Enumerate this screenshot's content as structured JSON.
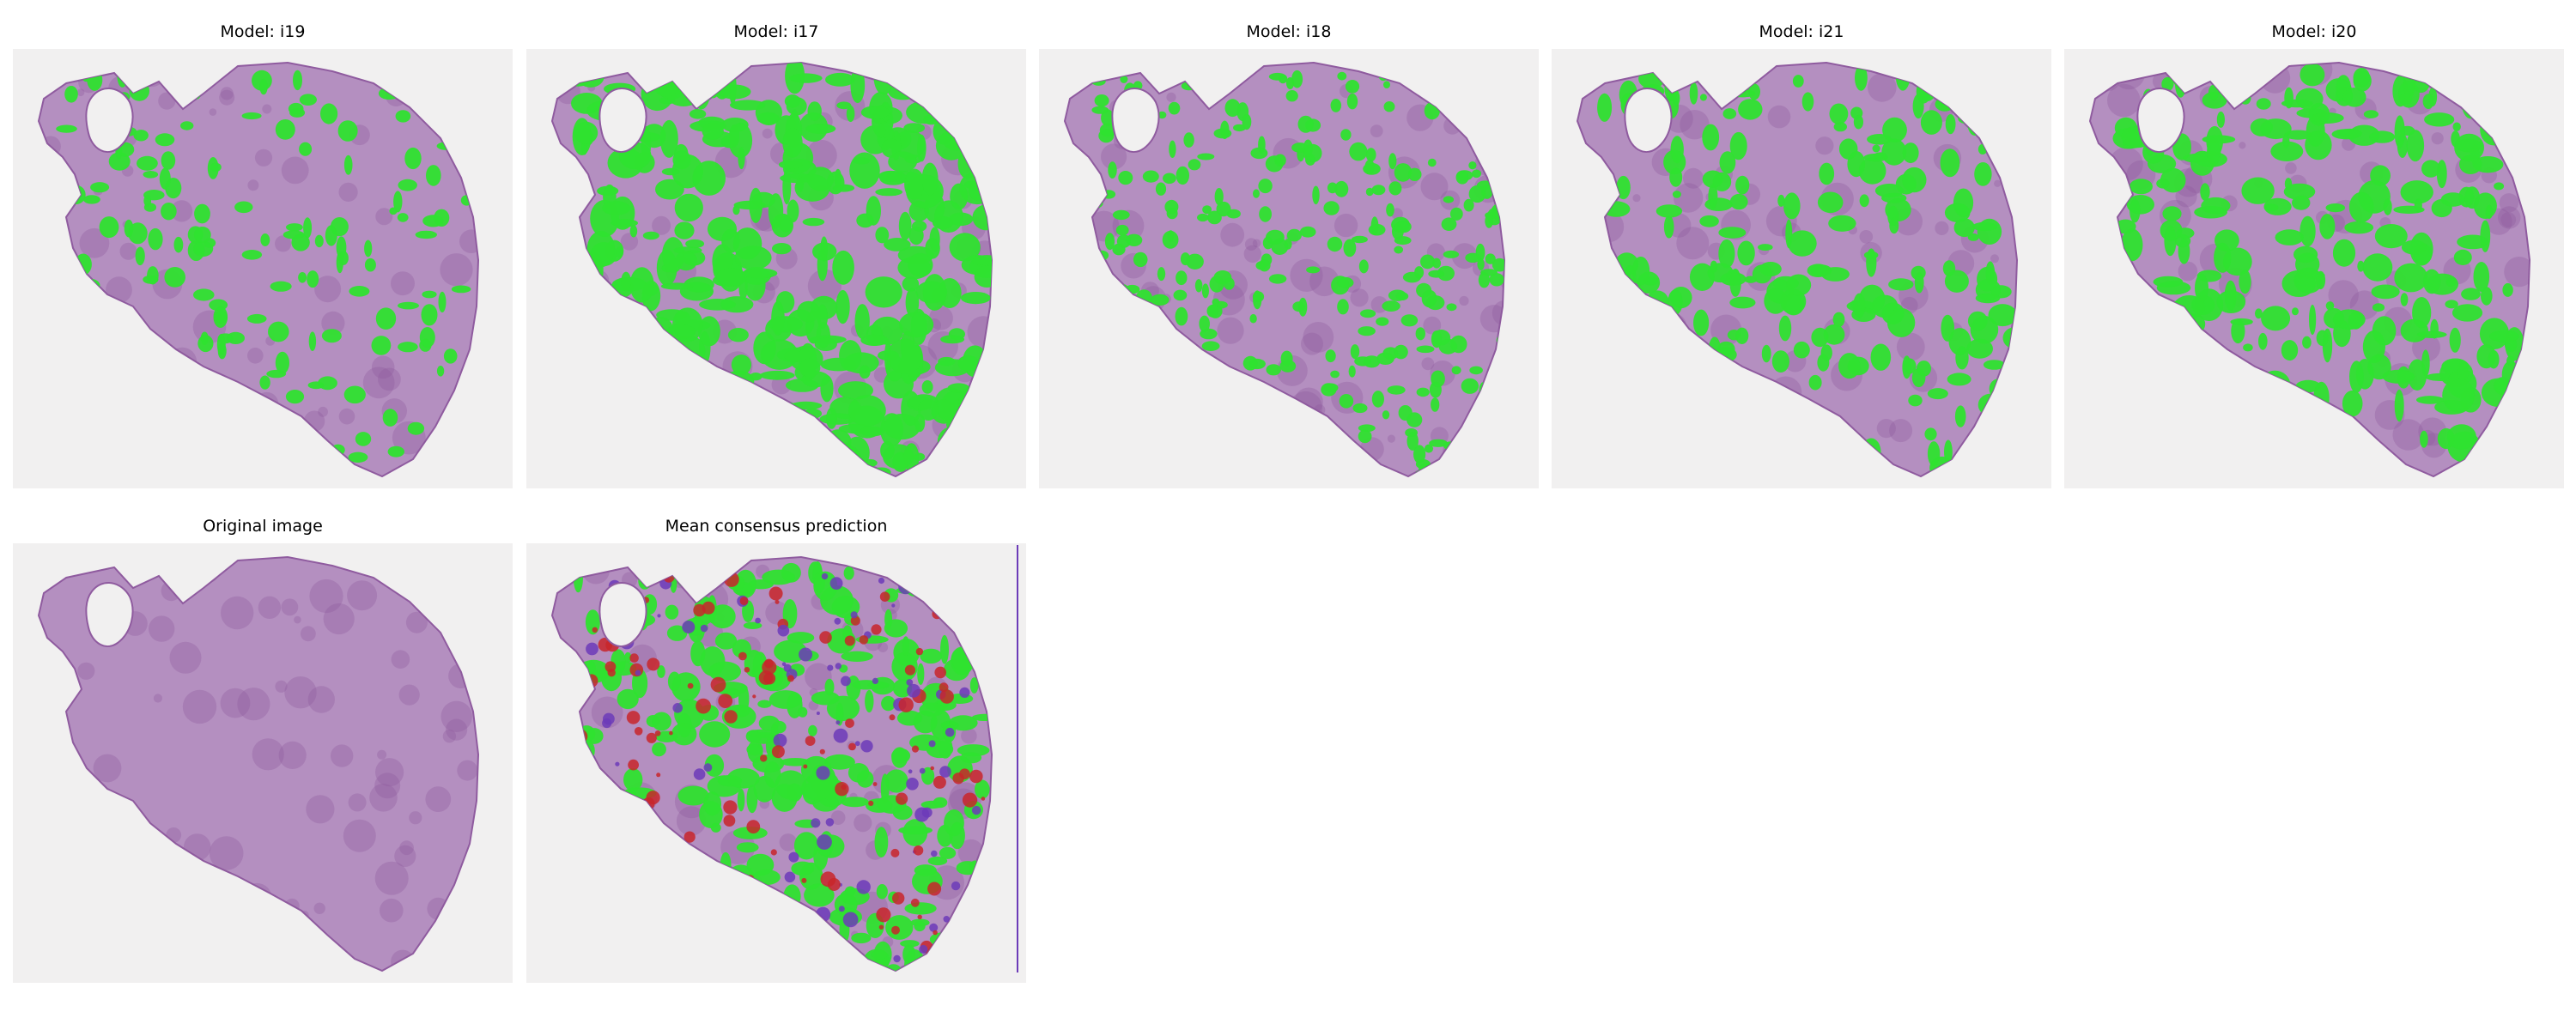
{
  "figure": {
    "panels": [
      {
        "title": "Model: i19",
        "kind": "model"
      },
      {
        "title": "Model: i17",
        "kind": "model"
      },
      {
        "title": "Model: i18",
        "kind": "model"
      },
      {
        "title": "Model: i21",
        "kind": "model"
      },
      {
        "title": "Model: i20",
        "kind": "model"
      },
      {
        "title": "Original image",
        "kind": "original"
      },
      {
        "title": "Mean consensus prediction",
        "kind": "consensus"
      }
    ]
  },
  "colors": {
    "background": "#f1f0f0",
    "tissue": "#b48fc0",
    "tissue_dark": "#8f5b9f",
    "mask_green": "#2fe22f",
    "consensus_red": "#c8262a",
    "consensus_purple": "#6c3bb8"
  }
}
